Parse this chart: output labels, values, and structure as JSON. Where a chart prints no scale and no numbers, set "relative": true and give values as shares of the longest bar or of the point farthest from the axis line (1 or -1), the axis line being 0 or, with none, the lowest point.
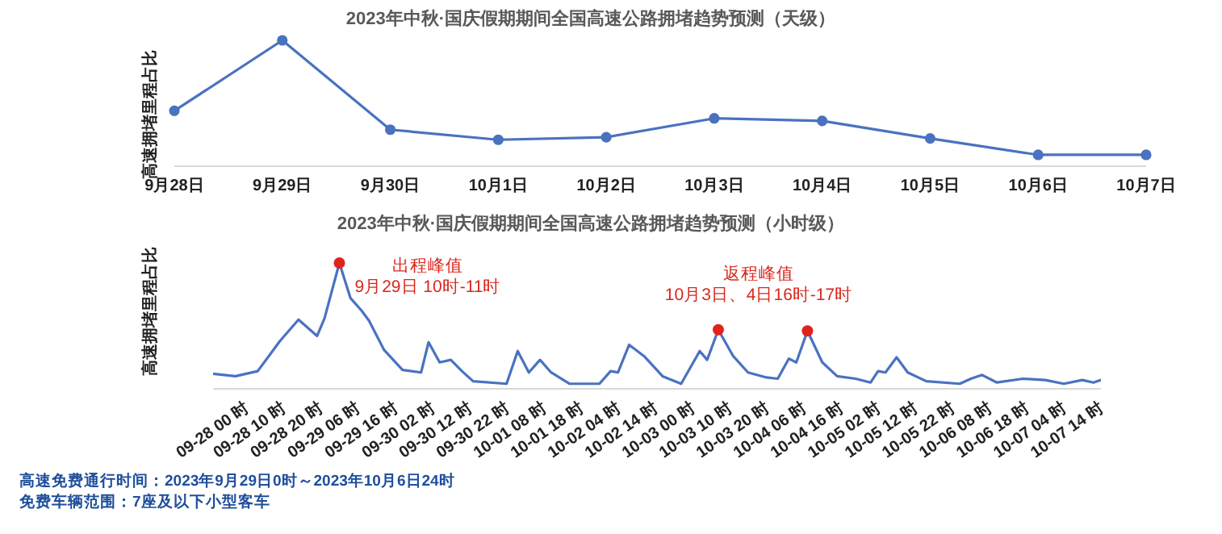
{
  "chart_data": [
    {
      "type": "line",
      "title": "2023年中秋·国庆假期期间全国高速公路拥堵趋势预测（天级）",
      "ylabel": "高速拥堵里程占比",
      "relative": true,
      "marker": "circle",
      "legend": false,
      "grid": false,
      "categories": [
        "9月28日",
        "9月29日",
        "9月30日",
        "10月1日",
        "10月2日",
        "10月3日",
        "10月4日",
        "10月5日",
        "10月6日",
        "10月7日"
      ],
      "series": [
        {
          "color": "#4a72c0",
          "values": [
            0.44,
            1,
            0.29,
            0.21,
            0.23,
            0.38,
            0.36,
            0.22,
            0.09,
            0.09
          ]
        }
      ]
    },
    {
      "type": "line",
      "title": "2023年中秋·国庆假期期间全国高速公路拥堵趋势预测（小时级）",
      "ylabel": "高速拥堵里程占比",
      "relative": true,
      "legend": false,
      "grid": false,
      "xlim": [
        "2023-09-28T00:00",
        "2023-10-07T23:00"
      ],
      "xticks": [
        {
          "value": "2023-09-28T00:00",
          "label": "09-28 00 时"
        },
        {
          "value": "2023-09-28T10:00",
          "label": "09-28 10 时"
        },
        {
          "value": "2023-09-28T20:00",
          "label": "09-28 20 时"
        },
        {
          "value": "2023-09-29T06:00",
          "label": "09-29 06 时"
        },
        {
          "value": "2023-09-29T16:00",
          "label": "09-29 16 时"
        },
        {
          "value": "2023-09-30T02:00",
          "label": "09-30 02 时"
        },
        {
          "value": "2023-09-30T12:00",
          "label": "09-30 12 时"
        },
        {
          "value": "2023-09-30T22:00",
          "label": "09-30 22 时"
        },
        {
          "value": "2023-10-01T08:00",
          "label": "10-01 08 时"
        },
        {
          "value": "2023-10-01T18:00",
          "label": "10-01 18 时"
        },
        {
          "value": "2023-10-02T04:00",
          "label": "10-02 04 时"
        },
        {
          "value": "2023-10-02T14:00",
          "label": "10-02 14 时"
        },
        {
          "value": "2023-10-03T00:00",
          "label": "10-03 00 时"
        },
        {
          "value": "2023-10-03T10:00",
          "label": "10-03 10 时"
        },
        {
          "value": "2023-10-03T20:00",
          "label": "10-03 20 时"
        },
        {
          "value": "2023-10-04T06:00",
          "label": "10-04 06 时"
        },
        {
          "value": "2023-10-04T16:00",
          "label": "10-04 16 时"
        },
        {
          "value": "2023-10-05T02:00",
          "label": "10-05 02 时"
        },
        {
          "value": "2023-10-05T12:00",
          "label": "10-05 12 时"
        },
        {
          "value": "2023-10-05T22:00",
          "label": "10-05 22 时"
        },
        {
          "value": "2023-10-06T08:00",
          "label": "10-06 08 时"
        },
        {
          "value": "2023-10-06T18:00",
          "label": "10-06 18 时"
        },
        {
          "value": "2023-10-07T04:00",
          "label": "10-07 04 时"
        },
        {
          "value": "2023-10-07T14:00",
          "label": "10-07 14 时"
        }
      ],
      "series": [
        {
          "color": "#4a72c0",
          "x": [
            "2023-09-28T00:00",
            "2023-09-28T06:00",
            "2023-09-28T12:00",
            "2023-09-28T15:00",
            "2023-09-28T18:00",
            "2023-09-28T23:00",
            "2023-09-29T04:00",
            "2023-09-29T06:00",
            "2023-09-29T10:00",
            "2023-09-29T13:00",
            "2023-09-29T16:00",
            "2023-09-29T18:00",
            "2023-09-29T22:00",
            "2023-09-30T03:00",
            "2023-09-30T08:00",
            "2023-09-30T10:00",
            "2023-09-30T13:00",
            "2023-09-30T16:00",
            "2023-09-30T19:00",
            "2023-09-30T22:00",
            "2023-10-01T07:00",
            "2023-10-01T10:00",
            "2023-10-01T13:00",
            "2023-10-01T16:00",
            "2023-10-01T19:00",
            "2023-10-02T00:00",
            "2023-10-02T08:00",
            "2023-10-02T11:00",
            "2023-10-02T13:00",
            "2023-10-02T16:00",
            "2023-10-02T20:00",
            "2023-10-03T01:00",
            "2023-10-03T06:00",
            "2023-10-03T11:00",
            "2023-10-03T13:00",
            "2023-10-03T16:00",
            "2023-10-03T20:00",
            "2023-10-04T00:00",
            "2023-10-04T05:00",
            "2023-10-04T08:00",
            "2023-10-04T11:00",
            "2023-10-04T13:00",
            "2023-10-04T16:00",
            "2023-10-04T20:00",
            "2023-10-05T00:00",
            "2023-10-05T05:00",
            "2023-10-05T09:00",
            "2023-10-05T11:00",
            "2023-10-05T13:00",
            "2023-10-05T16:00",
            "2023-10-05T19:00",
            "2023-10-06T00:00",
            "2023-10-06T09:00",
            "2023-10-06T12:00",
            "2023-10-06T15:00",
            "2023-10-06T19:00",
            "2023-10-07T02:00",
            "2023-10-07T08:00",
            "2023-10-07T13:00",
            "2023-10-07T18:00",
            "2023-10-07T21:00",
            "2023-10-07T23:00"
          ],
          "values": [
            0.12,
            0.1,
            0.14,
            0.26,
            0.38,
            0.55,
            0.42,
            0.56,
            1,
            0.72,
            0.62,
            0.54,
            0.31,
            0.15,
            0.13,
            0.37,
            0.21,
            0.23,
            0.14,
            0.06,
            0.04,
            0.3,
            0.13,
            0.23,
            0.13,
            0.04,
            0.04,
            0.14,
            0.13,
            0.35,
            0.26,
            0.1,
            0.04,
            0.3,
            0.23,
            0.47,
            0.26,
            0.13,
            0.09,
            0.08,
            0.24,
            0.21,
            0.46,
            0.21,
            0.1,
            0.08,
            0.05,
            0.14,
            0.13,
            0.25,
            0.13,
            0.06,
            0.04,
            0.08,
            0.11,
            0.05,
            0.08,
            0.07,
            0.04,
            0.07,
            0.05,
            0.07
          ]
        },
        {
          "type": "scatter",
          "color": "#e0231c",
          "x": [
            "2023-09-29T10:00",
            "2023-10-03T16:00",
            "2023-10-04T16:00"
          ],
          "values": [
            1,
            0.47,
            0.46
          ]
        }
      ],
      "annotations": [
        "出程峰值\n9月29日 10时-11时",
        "返程峰值\n10月3日、4日16时-17时",
        "高速免费通行时间：2023年9月29日0时～2023年10月6日24时",
        "免费车辆范围：7座及以下小型客车"
      ]
    }
  ]
}
